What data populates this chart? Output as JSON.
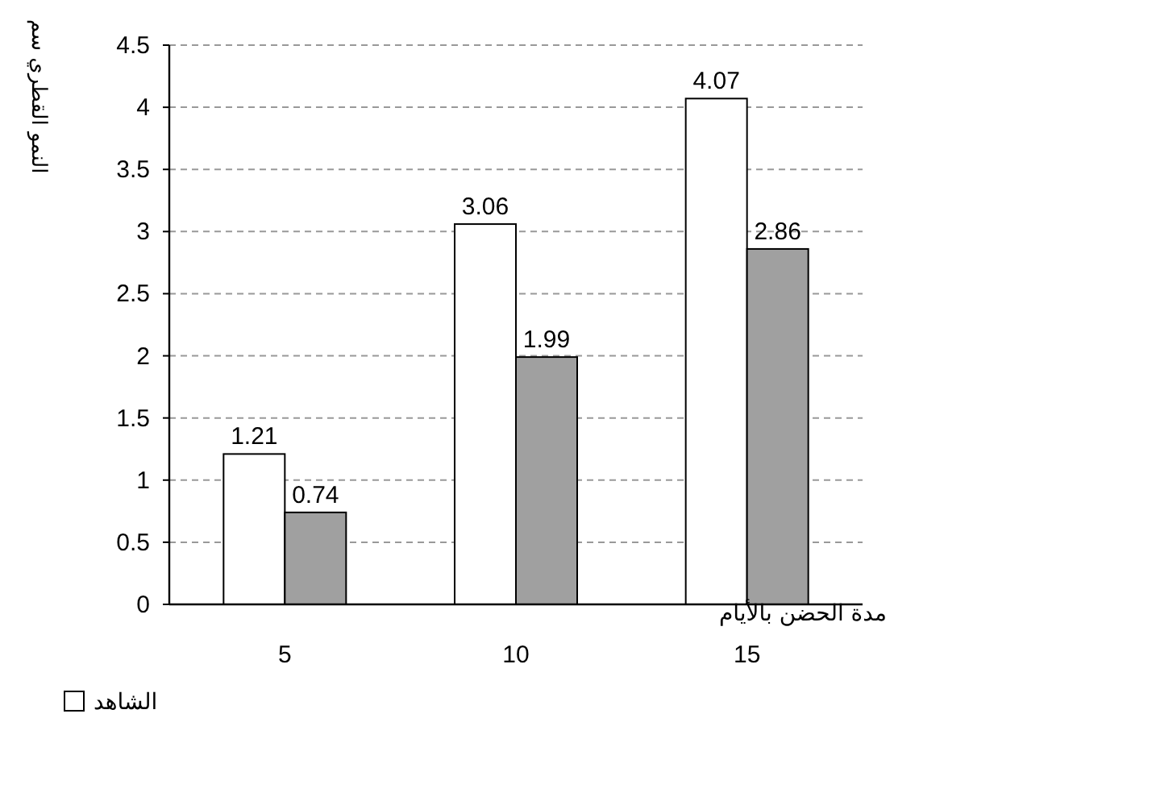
{
  "chart_data": {
    "type": "bar",
    "xlabel": "مدة الحضن بالأيام",
    "ylabel": "النمو القطري سم",
    "categories": [
      "5",
      "10",
      "15"
    ],
    "series": [
      {
        "name": "الشاهد",
        "color": "#ffffff",
        "values": [
          1.21,
          3.06,
          4.07
        ]
      },
      {
        "color": "#a0a0a0",
        "values": [
          0.74,
          1.99,
          2.86
        ]
      }
    ],
    "ylim": [
      0,
      4.5
    ],
    "yticks": [
      0,
      0.5,
      1,
      1.5,
      2,
      2.5,
      3,
      3.5,
      4,
      4.5
    ],
    "grid": "y",
    "data_labels": true,
    "legend": "bottom left"
  }
}
